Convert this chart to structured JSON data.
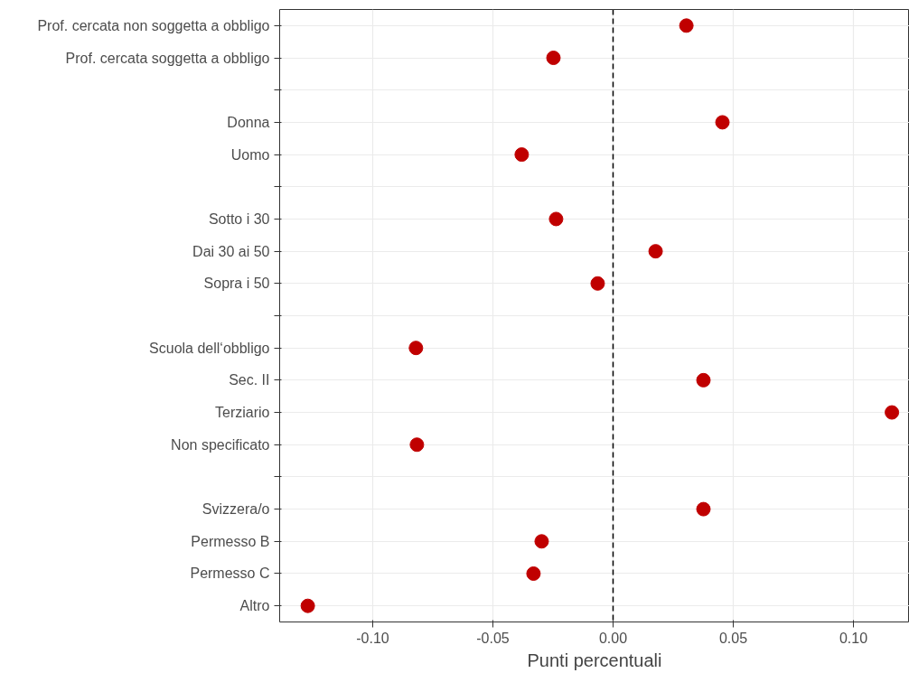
{
  "chart_data": {
    "type": "scatter",
    "orientation": "horizontal",
    "xlabel": "Punti percentuali",
    "categories": [
      "Prof. cercata non soggetta a obbligo",
      "Prof. cercata soggetta a obbligo",
      null,
      "Donna",
      "Uomo",
      null,
      "Sotto i 30",
      "Dai 30 ai 50",
      "Sopra i 50",
      null,
      "Scuola dell‘obbligo",
      "Sec. II",
      "Terziario",
      "Non specificato",
      null,
      "Svizzera/o",
      "Permesso B",
      "Permesso C",
      "Altro"
    ],
    "series": [
      {
        "color": "#c00000",
        "values": [
          0.0305,
          -0.0248,
          null,
          0.0455,
          -0.038,
          null,
          -0.0237,
          0.0177,
          -0.0064,
          null,
          -0.082,
          0.0376,
          0.116,
          -0.0816,
          null,
          0.0376,
          -0.0297,
          -0.0331,
          -0.127
        ]
      }
    ],
    "xlim": [
      -0.1387,
      0.1233
    ],
    "xticks": [
      {
        "value": -0.1,
        "label": "-0.10"
      },
      {
        "value": -0.05,
        "label": "-0.05"
      },
      {
        "value": 0,
        "label": "0.00"
      },
      {
        "value": 0.05,
        "label": "0.05"
      },
      {
        "value": 0.1,
        "label": "0.10"
      }
    ],
    "ref_lines": [
      {
        "axis": "x",
        "value": 0,
        "color": "#000000",
        "line_style": "dashed"
      }
    ],
    "grid": true,
    "marker": "circle"
  }
}
